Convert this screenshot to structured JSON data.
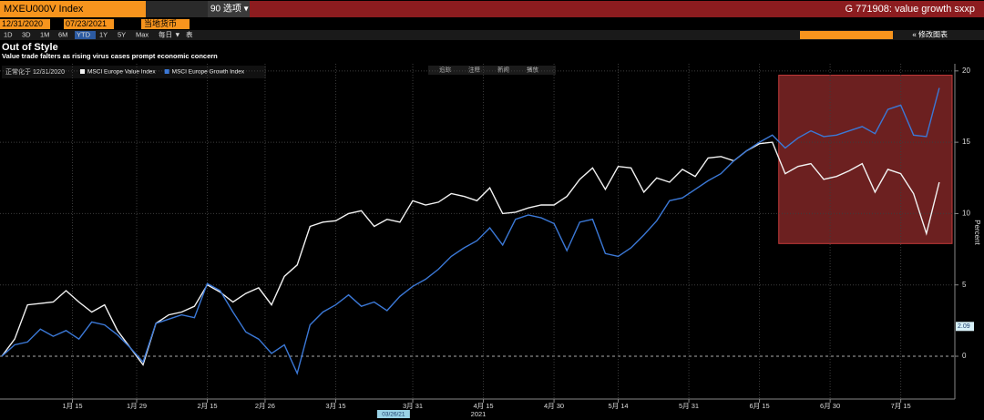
{
  "header": {
    "ticker": "MXEU000V Index",
    "options": "90 选项 ▾",
    "chart_id": "G 771908: value growth sxxp",
    "start_date": "12/31/2020",
    "end_date": "07/23/2021",
    "currency": "当地货币",
    "periods": [
      "1D",
      "3D",
      "1M",
      "6M",
      "YTD",
      "1Y",
      "5Y",
      "Max",
      "每日 ▼",
      "表"
    ],
    "edit": "« 修改图表",
    "tools": [
      "追踪",
      "注释",
      "新闻",
      "播放"
    ]
  },
  "chart_data": {
    "type": "line",
    "title": "Out of Style",
    "subtitle": "Value trade falters as rising virus cases prompt economic concern",
    "normalized": "正常化于 12/31/2020",
    "ylabel": "Percent",
    "xlabel": "2021",
    "x": [
      "2020-12-31",
      "2021-01-04",
      "2021-01-06",
      "2021-01-08",
      "2021-01-12",
      "2021-01-14",
      "2021-01-18",
      "2021-01-20",
      "2021-01-22",
      "2021-01-26",
      "2021-01-28",
      "2021-02-01",
      "2021-02-03",
      "2021-02-05",
      "2021-02-09",
      "2021-02-11",
      "2021-02-15",
      "2021-02-17",
      "2021-02-19",
      "2021-02-23",
      "2021-02-25",
      "2021-03-01",
      "2021-03-03",
      "2021-03-05",
      "2021-03-09",
      "2021-03-11",
      "2021-03-15",
      "2021-03-17",
      "2021-03-19",
      "2021-03-23",
      "2021-03-25",
      "2021-03-29",
      "2021-03-31",
      "2021-04-02",
      "2021-04-06",
      "2021-04-08",
      "2021-04-12",
      "2021-04-14",
      "2021-04-16",
      "2021-04-20",
      "2021-04-22",
      "2021-04-26",
      "2021-04-28",
      "2021-04-30",
      "2021-05-04",
      "2021-05-06",
      "2021-05-10",
      "2021-05-12",
      "2021-05-14",
      "2021-05-18",
      "2021-05-20",
      "2021-05-24",
      "2021-05-26",
      "2021-05-28",
      "2021-06-01",
      "2021-06-03",
      "2021-06-07",
      "2021-06-09",
      "2021-06-11",
      "2021-06-15",
      "2021-06-17",
      "2021-06-21",
      "2021-06-23",
      "2021-06-25",
      "2021-06-29",
      "2021-07-01",
      "2021-07-05",
      "2021-07-07",
      "2021-07-09",
      "2021-07-13",
      "2021-07-15",
      "2021-07-19",
      "2021-07-21",
      "2021-07-23"
    ],
    "series": [
      {
        "name": "MSCI Europe Value Index",
        "color": "#f2f2f2",
        "values": [
          0,
          1.2,
          3.6,
          3.7,
          3.8,
          4.6,
          3.8,
          3.1,
          3.6,
          1.8,
          0.6,
          -0.6,
          2.3,
          2.9,
          3.1,
          3.5,
          5.0,
          4.5,
          3.8,
          4.4,
          4.8,
          3.6,
          5.6,
          6.4,
          9.1,
          9.4,
          9.5,
          10.0,
          10.2,
          9.1,
          9.6,
          9.4,
          10.9,
          10.6,
          10.8,
          11.4,
          11.2,
          10.9,
          11.8,
          10.0,
          10.1,
          10.4,
          10.6,
          10.6,
          11.2,
          12.4,
          13.2,
          11.7,
          13.3,
          13.2,
          11.5,
          12.5,
          12.2,
          13.1,
          12.6,
          13.9,
          14.0,
          13.7,
          14.4,
          14.9,
          15.0,
          12.8,
          13.3,
          13.5,
          12.4,
          12.6,
          13.0,
          13.5,
          11.5,
          13.1,
          12.8,
          11.4,
          8.6,
          12.2
        ]
      },
      {
        "name": "MSCI Europe Growth Index",
        "color": "#3b78d6",
        "values": [
          0,
          0.8,
          1.0,
          1.9,
          1.4,
          1.8,
          1.2,
          2.4,
          2.2,
          1.5,
          0.6,
          -0.4,
          2.3,
          2.6,
          2.9,
          2.7,
          5.1,
          4.6,
          3.1,
          1.7,
          1.2,
          0.2,
          0.8,
          -1.2,
          2.2,
          3.1,
          3.6,
          4.3,
          3.5,
          3.8,
          3.2,
          4.2,
          4.9,
          5.4,
          6.1,
          7.0,
          7.6,
          8.1,
          9.0,
          7.8,
          9.6,
          9.9,
          9.7,
          9.3,
          7.4,
          9.4,
          9.6,
          7.2,
          7.0,
          7.6,
          8.5,
          9.5,
          10.9,
          11.1,
          11.7,
          12.3,
          12.8,
          13.7,
          14.4,
          15.0,
          15.5,
          14.6,
          15.3,
          15.8,
          15.4,
          15.5,
          15.8,
          16.1,
          15.6,
          17.3,
          17.6,
          15.5,
          15.4,
          18.8
        ]
      }
    ],
    "xlim": [
      "2020-12-31",
      "2021-07-27"
    ],
    "xticks": [
      {
        "value": "2021-01-15",
        "label": "1月 15"
      },
      {
        "value": "2021-01-29",
        "label": "1月 29"
      },
      {
        "value": "2021-02-15",
        "label": "2月 15"
      },
      {
        "value": "2021-02-26",
        "label": "2月 26"
      },
      {
        "value": "2021-03-15",
        "label": "3月 15"
      },
      {
        "value": "2021-03-31",
        "label": "3月 31"
      },
      {
        "value": "2021-04-15",
        "label": "4月 15"
      },
      {
        "value": "2021-04-30",
        "label": "4月 30"
      },
      {
        "value": "2021-05-14",
        "label": "5月 14"
      },
      {
        "value": "2021-05-31",
        "label": "5月 31"
      },
      {
        "value": "2021-06-15",
        "label": "6月 15"
      },
      {
        "value": "2021-06-30",
        "label": "6月 30"
      },
      {
        "value": "2021-07-15",
        "label": "7月 15"
      }
    ],
    "ylim": [
      -3,
      20.5
    ],
    "yticks": [
      0,
      5,
      10,
      15,
      20
    ],
    "grid": true,
    "crosshair": {
      "x": "2021-03-26",
      "label": "03/26/21",
      "y": 2.09
    },
    "highlight": {
      "x0": "2021-06-18",
      "x1": "2021-07-27",
      "y0": 7.9,
      "y1": 19.7,
      "color": "#c43a3a"
    }
  }
}
